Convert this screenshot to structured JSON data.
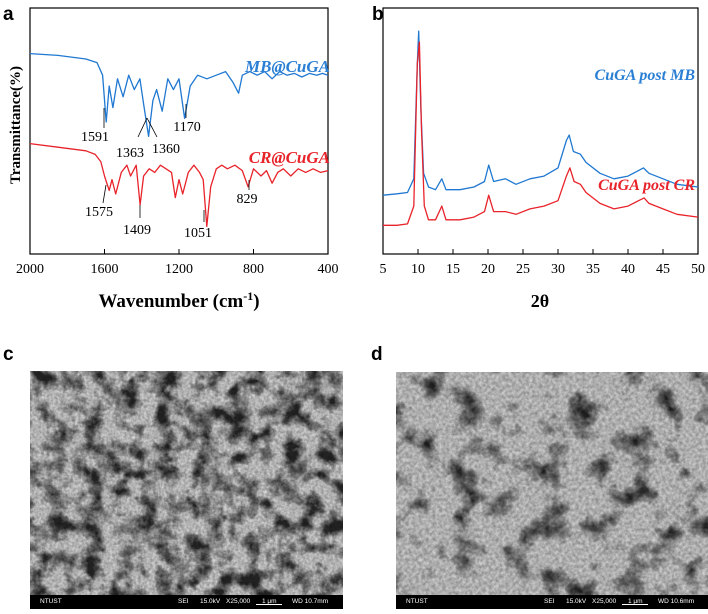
{
  "panels": {
    "a": {
      "letter": "a",
      "ylabel": "Transmittance(%)",
      "xlabel_main": "Wavenumber (cm",
      "xlabel_sup": "-1",
      "xlabel_end": ")",
      "ticks": [
        "2000",
        "1600",
        "1200",
        "800",
        "400"
      ],
      "label_mb": "MB@CuGA",
      "label_cr": "CR@CuGA",
      "peaks_mb": [
        "1591",
        "1363",
        "1360",
        "1170"
      ],
      "peaks_cr": [
        "1575",
        "1409",
        "1051",
        "829"
      ]
    },
    "b": {
      "letter": "b",
      "xlabel": "2θ",
      "ticks": [
        "5",
        "10",
        "15",
        "20",
        "25",
        "30",
        "35",
        "40",
        "45",
        "50"
      ],
      "label_mb": "CuGA post MB",
      "label_cr": "CuGA post CR"
    },
    "c": {
      "letter": "c",
      "sem": {
        "org": "NTUST",
        "mode": "SEI",
        "kv": "15.0kV",
        "mag": "X25,000",
        "scale": "1 μm",
        "wd": "WD 10.7mm"
      }
    },
    "d": {
      "letter": "d",
      "sem": {
        "org": "NTUST",
        "mode": "SEI",
        "kv": "15.0kV",
        "mag": "X25,000",
        "scale": "1 μm",
        "wd": "WD 10.6mm"
      }
    }
  },
  "colors": {
    "mb": "#1f78d1",
    "cr": "#e8232a",
    "label_mb": "#2a7fd4",
    "label_cr": "#e8232a"
  },
  "chart_data": [
    {
      "type": "line",
      "title": "",
      "xlabel": "Wavenumber (cm-1)",
      "ylabel": "Transmittance(%)",
      "xlim": [
        2000,
        400
      ],
      "x_reversed": true,
      "grid": false,
      "yticks": "none",
      "series": [
        {
          "name": "MB@CuGA",
          "points": [
            [
              2000,
              98
            ],
            [
              1850,
              97
            ],
            [
              1700,
              95
            ],
            [
              1640,
              93
            ],
            [
              1610,
              86
            ],
            [
              1591,
              60
            ],
            [
              1575,
              80
            ],
            [
              1555,
              68
            ],
            [
              1530,
              84
            ],
            [
              1500,
              74
            ],
            [
              1470,
              86
            ],
            [
              1440,
              78
            ],
            [
              1410,
              84
            ],
            [
              1390,
              70
            ],
            [
              1363,
              52
            ],
            [
              1360,
              55
            ],
            [
              1340,
              72
            ],
            [
              1320,
              78
            ],
            [
              1290,
              66
            ],
            [
              1260,
              84
            ],
            [
              1230,
              78
            ],
            [
              1200,
              84
            ],
            [
              1170,
              62
            ],
            [
              1140,
              80
            ],
            [
              1100,
              86
            ],
            [
              1050,
              84
            ],
            [
              1000,
              86
            ],
            [
              950,
              88
            ],
            [
              910,
              82
            ],
            [
              880,
              76
            ],
            [
              860,
              86
            ],
            [
              820,
              88
            ],
            [
              780,
              86
            ],
            [
              740,
              88
            ],
            [
              700,
              84
            ],
            [
              660,
              88
            ],
            [
              620,
              86
            ],
            [
              580,
              87
            ],
            [
              540,
              85
            ],
            [
              500,
              87
            ],
            [
              460,
              86
            ],
            [
              430,
              87
            ],
            [
              400,
              86
            ]
          ],
          "peak_labels": [
            "1591",
            "1363",
            "1360",
            "1170"
          ]
        },
        {
          "name": "CR@CuGA",
          "points": [
            [
              2000,
              48
            ],
            [
              1850,
              46
            ],
            [
              1700,
              44
            ],
            [
              1650,
              42
            ],
            [
              1620,
              38
            ],
            [
              1600,
              30
            ],
            [
              1575,
              22
            ],
            [
              1560,
              28
            ],
            [
              1540,
              20
            ],
            [
              1510,
              32
            ],
            [
              1480,
              36
            ],
            [
              1460,
              30
            ],
            [
              1430,
              36
            ],
            [
              1409,
              14
            ],
            [
              1390,
              30
            ],
            [
              1360,
              34
            ],
            [
              1330,
              32
            ],
            [
              1300,
              36
            ],
            [
              1270,
              34
            ],
            [
              1240,
              32
            ],
            [
              1220,
              18
            ],
            [
              1200,
              28
            ],
            [
              1180,
              20
            ],
            [
              1150,
              32
            ],
            [
              1120,
              36
            ],
            [
              1090,
              32
            ],
            [
              1070,
              28
            ],
            [
              1051,
              2
            ],
            [
              1030,
              24
            ],
            [
              1000,
              34
            ],
            [
              970,
              36
            ],
            [
              940,
              34
            ],
            [
              900,
              36
            ],
            [
              860,
              33
            ],
            [
              829,
              24
            ],
            [
              800,
              34
            ],
            [
              760,
              30
            ],
            [
              730,
              33
            ],
            [
              700,
              26
            ],
            [
              670,
              32
            ],
            [
              640,
              34
            ],
            [
              600,
              30
            ],
            [
              560,
              34
            ],
            [
              520,
              32
            ],
            [
              480,
              34
            ],
            [
              440,
              32
            ],
            [
              400,
              33
            ]
          ],
          "peak_labels": [
            "1575",
            "1409",
            "1051",
            "829"
          ]
        }
      ]
    },
    {
      "type": "line",
      "title": "",
      "xlabel": "2θ",
      "ylabel": "",
      "xlim": [
        5,
        50
      ],
      "grid": false,
      "series": [
        {
          "name": "CuGA post MB",
          "points": [
            [
              5,
              12
            ],
            [
              7,
              12.5
            ],
            [
              8.5,
              13
            ],
            [
              9.4,
              18
            ],
            [
              9.9,
              60
            ],
            [
              10.1,
              72
            ],
            [
              10.4,
              44
            ],
            [
              10.8,
              20
            ],
            [
              11.5,
              15
            ],
            [
              12.5,
              14
            ],
            [
              13.4,
              18
            ],
            [
              14,
              14
            ],
            [
              16,
              14
            ],
            [
              18,
              15
            ],
            [
              19.5,
              17
            ],
            [
              20.1,
              23
            ],
            [
              20.8,
              17
            ],
            [
              22.5,
              18
            ],
            [
              24,
              16
            ],
            [
              26,
              18
            ],
            [
              28,
              19
            ],
            [
              30,
              22
            ],
            [
              31.2,
              32
            ],
            [
              31.6,
              34
            ],
            [
              32.2,
              28
            ],
            [
              33.2,
              27
            ],
            [
              34,
              24
            ],
            [
              36,
              20
            ],
            [
              38,
              18
            ],
            [
              40,
              19
            ],
            [
              41.5,
              21
            ],
            [
              42.2,
              22
            ],
            [
              43,
              20
            ],
            [
              45,
              18
            ],
            [
              47,
              16
            ],
            [
              50,
              15
            ]
          ]
        },
        {
          "name": "CuGA post CR",
          "points": [
            [
              5,
              1
            ],
            [
              7,
              1
            ],
            [
              8.5,
              1.5
            ],
            [
              9.4,
              8
            ],
            [
              9.9,
              60
            ],
            [
              10.2,
              68
            ],
            [
              10.5,
              36
            ],
            [
              10.9,
              8
            ],
            [
              11.5,
              3
            ],
            [
              12.5,
              3
            ],
            [
              13.4,
              8
            ],
            [
              14,
              3
            ],
            [
              16,
              3
            ],
            [
              18,
              4
            ],
            [
              19.5,
              6
            ],
            [
              20.1,
              12
            ],
            [
              20.8,
              6
            ],
            [
              22.5,
              6
            ],
            [
              24,
              5
            ],
            [
              26,
              7
            ],
            [
              28,
              8
            ],
            [
              30,
              10
            ],
            [
              31.2,
              19
            ],
            [
              31.7,
              22
            ],
            [
              32.3,
              17
            ],
            [
              33.2,
              16
            ],
            [
              34,
              13
            ],
            [
              36,
              9
            ],
            [
              38,
              7
            ],
            [
              40,
              8
            ],
            [
              41.5,
              10
            ],
            [
              42.3,
              11
            ],
            [
              43,
              9
            ],
            [
              45,
              7
            ],
            [
              47,
              5
            ],
            [
              50,
              4
            ]
          ]
        }
      ]
    }
  ]
}
